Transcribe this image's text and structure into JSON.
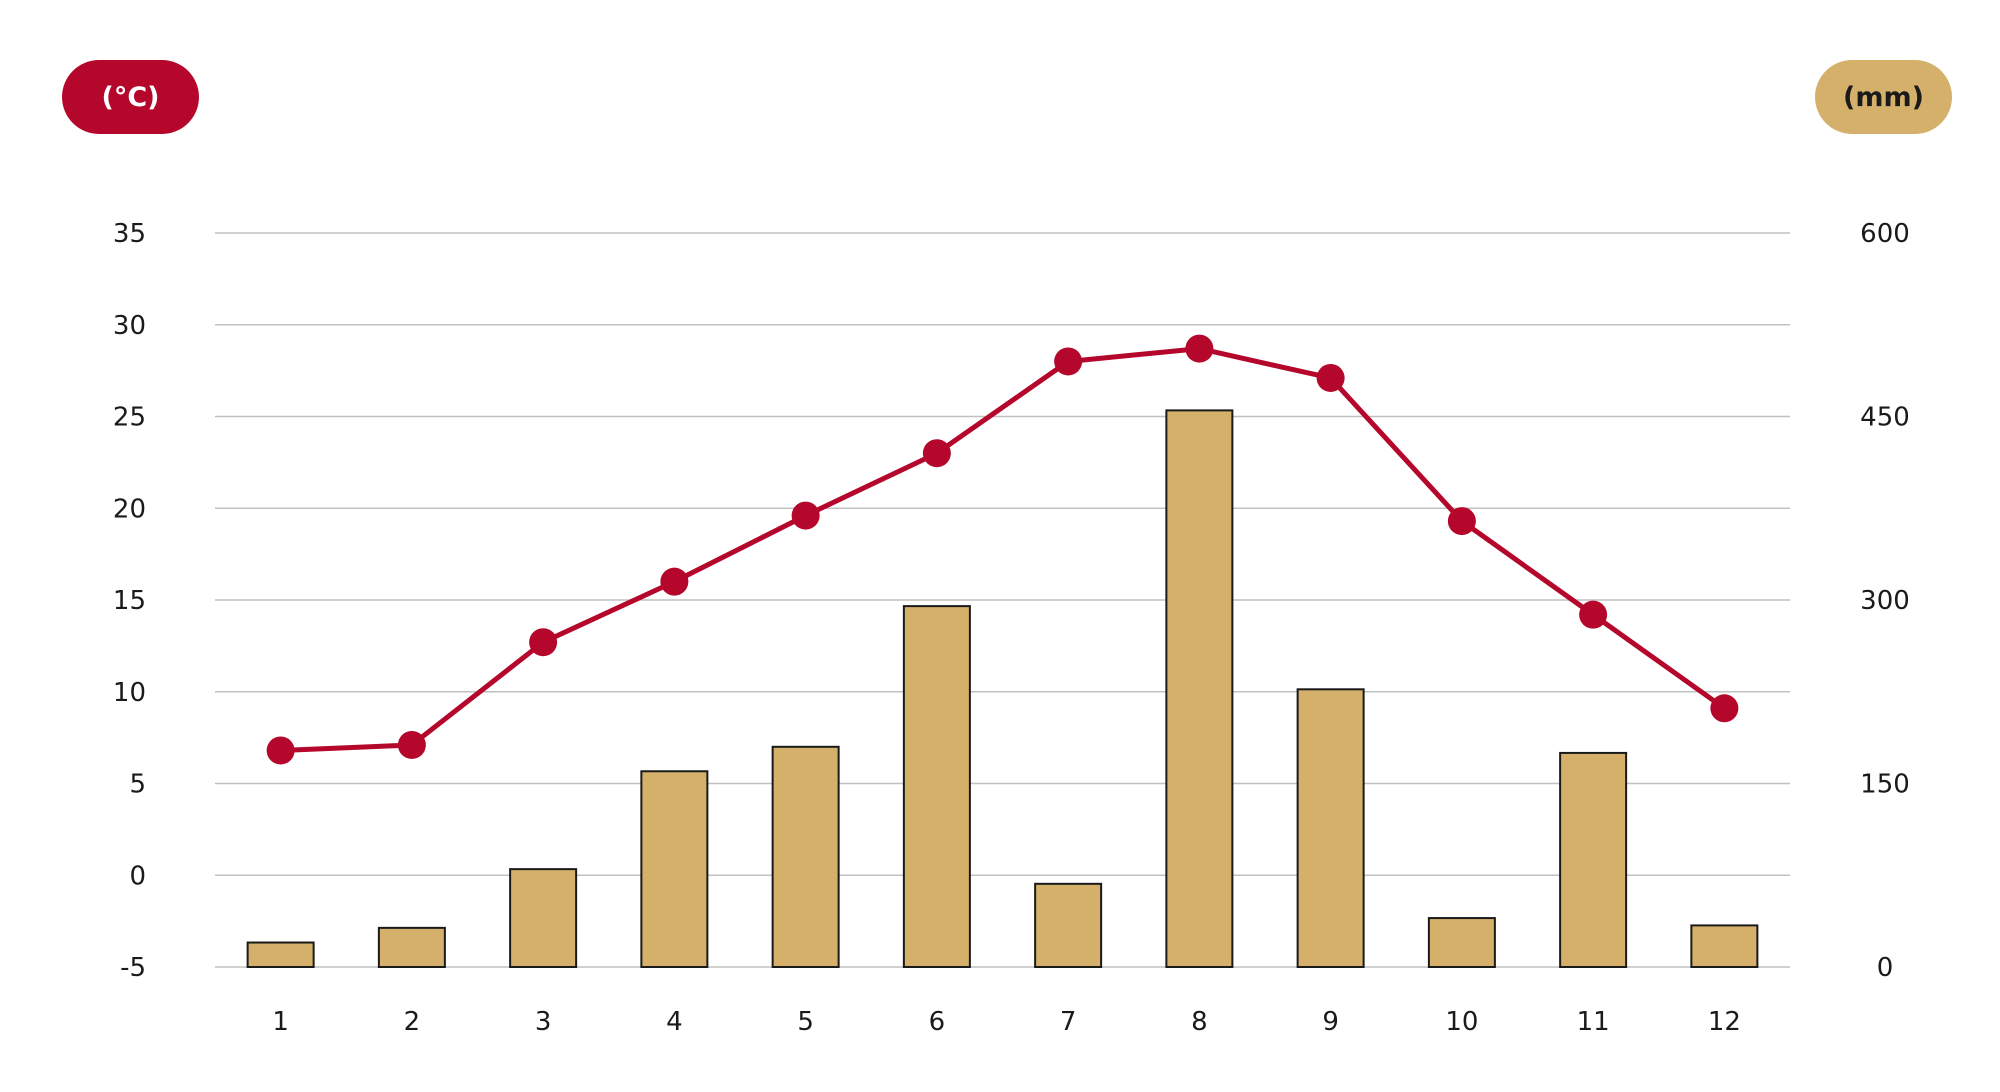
{
  "left_unit": "(°C)",
  "right_unit": "(mm)",
  "colors": {
    "temperature": "#b4072b",
    "precipitation": "#d4b06b",
    "bar_stroke": "#1a1a1a",
    "grid": "#c0c0c0"
  },
  "chart_data": {
    "type": "bar",
    "categories": [
      "1",
      "2",
      "3",
      "4",
      "5",
      "6",
      "7",
      "8",
      "9",
      "10",
      "11",
      "12"
    ],
    "series": [
      {
        "type": "bar",
        "axis": "right",
        "values": [
          20,
          32,
          80,
          160,
          180,
          295,
          68,
          455,
          227,
          40,
          175,
          34
        ]
      },
      {
        "type": "line",
        "axis": "left",
        "values": [
          6.8,
          7.1,
          12.7,
          16.0,
          19.6,
          23.0,
          28.0,
          28.7,
          27.1,
          19.3,
          14.2,
          9.1
        ]
      }
    ],
    "y_left": {
      "ticks": [
        "35",
        "30",
        "25",
        "20",
        "15",
        "10",
        "5",
        "0",
        "-5"
      ],
      "range": [
        -5,
        35
      ]
    },
    "y_right": {
      "ticks": [
        "600",
        "450",
        "300",
        "150",
        "0"
      ],
      "range": [
        0,
        600
      ]
    },
    "grid": true
  }
}
